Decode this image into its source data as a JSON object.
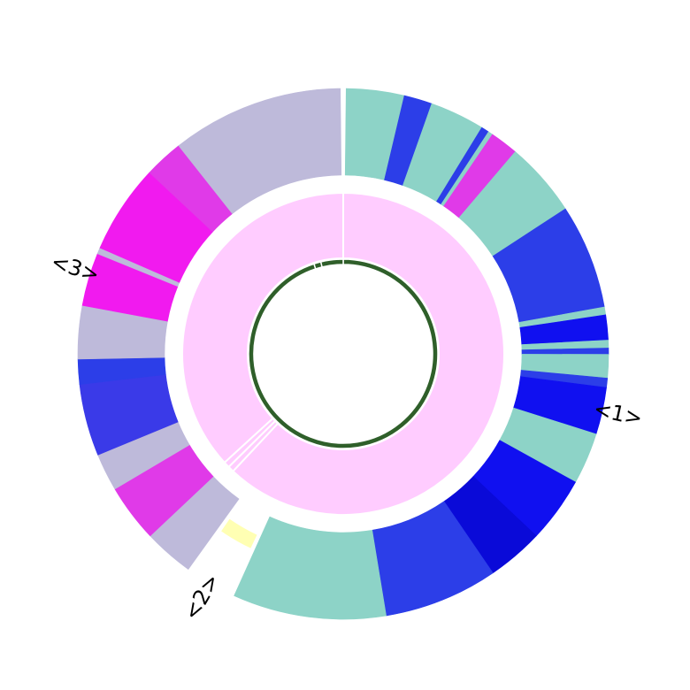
{
  "chart_data": {
    "type": "sunburst",
    "title": "",
    "rings": [
      "inner",
      "middle",
      "outer"
    ],
    "inner_ring": {
      "color": "#2f5f2a",
      "segments": [
        {
          "value": 95.0
        },
        {
          "value": 1.2
        },
        {
          "value": 3.8
        }
      ]
    },
    "middle_ring": {
      "color": "#ffccff",
      "segments": [
        {
          "value": 62.0
        },
        {
          "value": 0.6
        },
        {
          "value": 0.6
        },
        {
          "value": 36.8
        }
      ]
    },
    "outer_ring": {
      "groups": [
        {
          "label": "<1>",
          "segments": [
            {
              "color": "#8dd3c7",
              "value": 3.7
            },
            {
              "color": "#2c3ee8",
              "value": 1.8
            },
            {
              "color": "#8dd3c7",
              "value": 3.5
            },
            {
              "color": "#2c3ee8",
              "value": 0.5
            },
            {
              "color": "#8dd3c7",
              "value": 0.3
            },
            {
              "color": "#e03ae8",
              "value": 1.8
            },
            {
              "color": "#8dd3c7",
              "value": 4.8
            },
            {
              "color": "#2c3ee8",
              "value": 6.7
            },
            {
              "color": "#8dd3c7",
              "value": 0.5
            },
            {
              "color": "#1010f0",
              "value": 1.6
            },
            {
              "color": "#8dd3c7",
              "value": 0.5
            },
            {
              "color": "#2c3ee8",
              "value": 0.4
            },
            {
              "color": "#8dd3c7",
              "value": 1.5
            },
            {
              "color": "#2c3ee8",
              "value": 0.6
            },
            {
              "color": "#1010f0",
              "value": 3.0
            },
            {
              "color": "#8dd3c7",
              "value": 3.3
            },
            {
              "color": "#1010f0",
              "value": 4.2
            },
            {
              "color": "#0a0ad8",
              "value": 3.6
            },
            {
              "color": "#2c3ee8",
              "value": 7.3
            },
            {
              "color": "#8dd3c7",
              "value": 9.8
            }
          ]
        },
        {
          "label": "<2>",
          "segments": [
            {
              "color": "#ffffb3",
              "value": 2.6
            }
          ]
        },
        {
          "label": "<3>",
          "segments": [
            {
              "color": "#bebada",
              "value": 3.2
            },
            {
              "color": "#e03ae8",
              "value": 3.7
            },
            {
              "color": "#bebada",
              "value": 2.4
            },
            {
              "color": "#3a3ae8",
              "value": 4.6
            },
            {
              "color": "#2c3ee8",
              "value": 1.6
            },
            {
              "color": "#bebada",
              "value": 3.4
            },
            {
              "color": "#f11aef",
              "value": 3.4
            },
            {
              "color": "#bebada",
              "value": 0.4
            },
            {
              "color": "#f11aef",
              "value": 5.7
            },
            {
              "color": "#e03ae8",
              "value": 2.5
            },
            {
              "color": "#bebada",
              "value": 11.0
            }
          ]
        }
      ]
    }
  }
}
